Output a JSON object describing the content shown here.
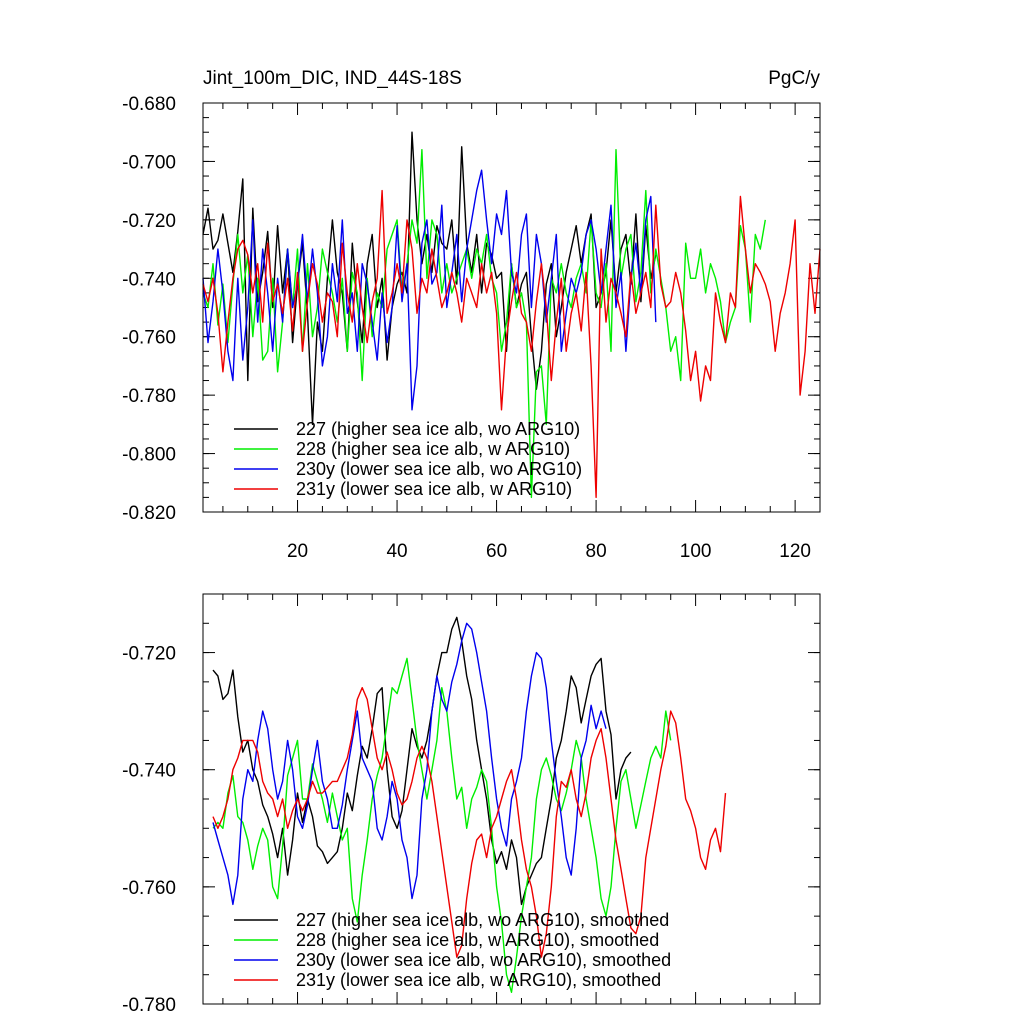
{
  "chart_data": [
    {
      "type": "line",
      "panel": "top",
      "title": "Jint_100m_DIC, IND_44S-18S",
      "units": "PgC/y",
      "xlim": [
        1,
        125
      ],
      "ylim": [
        -0.82,
        -0.68
      ],
      "yticks": [
        -0.68,
        -0.7,
        -0.72,
        -0.74,
        -0.76,
        -0.78,
        -0.8,
        -0.82
      ],
      "ytick_labels": [
        "-0.680",
        "-0.700",
        "-0.720",
        "-0.740",
        "-0.760",
        "-0.780",
        "-0.800",
        "-0.820"
      ],
      "xticks": [
        20,
        40,
        60,
        80,
        100,
        120
      ],
      "xtick_labels": [
        "20",
        "40",
        "60",
        "80",
        "100",
        "120"
      ],
      "legend": [
        "227 (higher sea ice alb, wo ARG10)",
        "228 (higher sea ice alb, w ARG10)",
        "230y (lower sea ice alb, wo ARG10)",
        "231y (lower sea ice alb, w ARG10)"
      ],
      "series": [
        {
          "name": "227 (higher sea ice alb, wo ARG10)",
          "color": "#000000",
          "x_start": 1,
          "values": [
            -0.725,
            -0.716,
            -0.73,
            -0.727,
            -0.718,
            -0.728,
            -0.738,
            -0.724,
            -0.706,
            -0.775,
            -0.716,
            -0.748,
            -0.738,
            -0.724,
            -0.75,
            -0.722,
            -0.745,
            -0.73,
            -0.762,
            -0.742,
            -0.728,
            -0.752,
            -0.79,
            -0.755,
            -0.765,
            -0.74,
            -0.72,
            -0.738,
            -0.745,
            -0.765,
            -0.728,
            -0.748,
            -0.762,
            -0.735,
            -0.725,
            -0.75,
            -0.74,
            -0.768,
            -0.75,
            -0.742,
            -0.738,
            -0.745,
            -0.69,
            -0.72,
            -0.735,
            -0.725,
            -0.738,
            -0.722,
            -0.728,
            -0.73,
            -0.72,
            -0.742,
            -0.695,
            -0.728,
            -0.738,
            -0.725,
            -0.745,
            -0.728,
            -0.732,
            -0.74,
            -0.738,
            -0.765,
            -0.735,
            -0.75,
            -0.742,
            -0.738,
            -0.76,
            -0.778,
            -0.765,
            -0.742,
            -0.735,
            -0.76,
            -0.75,
            -0.738,
            -0.73,
            -0.722,
            -0.735,
            -0.725,
            -0.718,
            -0.75,
            -0.745,
            -0.738,
            -0.72,
            -0.745,
            -0.73,
            -0.725,
            -0.742,
            -0.718,
            -0.748,
            -0.722,
            -0.74,
            -0.732
          ]
        },
        {
          "name": "228 (higher sea ice alb, w ARG10)",
          "color": "#00ee00",
          "x_start": 1,
          "values": [
            -0.745,
            -0.75,
            -0.735,
            -0.756,
            -0.742,
            -0.762,
            -0.742,
            -0.725,
            -0.745,
            -0.732,
            -0.76,
            -0.74,
            -0.768,
            -0.765,
            -0.74,
            -0.772,
            -0.755,
            -0.73,
            -0.75,
            -0.73,
            -0.765,
            -0.735,
            -0.76,
            -0.75,
            -0.73,
            -0.738,
            -0.745,
            -0.755,
            -0.74,
            -0.765,
            -0.738,
            -0.745,
            -0.775,
            -0.74,
            -0.76,
            -0.745,
            -0.75,
            -0.73,
            -0.725,
            -0.72,
            -0.745,
            -0.735,
            -0.72,
            -0.728,
            -0.696,
            -0.74,
            -0.72,
            -0.725,
            -0.745,
            -0.735,
            -0.745,
            -0.74,
            -0.735,
            -0.73,
            -0.74,
            -0.73,
            -0.735,
            -0.725,
            -0.74,
            -0.745,
            -0.765,
            -0.755,
            -0.735,
            -0.75,
            -0.745,
            -0.755,
            -0.815,
            -0.772,
            -0.77,
            -0.79,
            -0.74,
            -0.745,
            -0.735,
            -0.745,
            -0.75,
            -0.74,
            -0.735,
            -0.745,
            -0.72,
            -0.745,
            -0.75,
            -0.735,
            -0.765,
            -0.696,
            -0.74,
            -0.73,
            -0.725,
            -0.748,
            -0.738,
            -0.71,
            -0.745,
            -0.73,
            -0.74,
            -0.75,
            -0.765,
            -0.76,
            -0.775,
            -0.728,
            -0.74,
            -0.74,
            -0.73,
            -0.745,
            -0.735,
            -0.74,
            -0.748,
            -0.762,
            -0.755,
            -0.75,
            -0.722,
            -0.73,
            -0.755,
            -0.725,
            -0.73,
            -0.72
          ]
        },
        {
          "name": "230y (lower sea ice alb, wo ARG10)",
          "color": "#0000ee",
          "x_start": 1,
          "values": [
            -0.74,
            -0.762,
            -0.748,
            -0.73,
            -0.745,
            -0.765,
            -0.775,
            -0.74,
            -0.768,
            -0.75,
            -0.72,
            -0.755,
            -0.73,
            -0.745,
            -0.765,
            -0.74,
            -0.755,
            -0.73,
            -0.75,
            -0.742,
            -0.725,
            -0.748,
            -0.73,
            -0.745,
            -0.77,
            -0.76,
            -0.735,
            -0.748,
            -0.72,
            -0.752,
            -0.745,
            -0.765,
            -0.735,
            -0.742,
            -0.755,
            -0.768,
            -0.745,
            -0.762,
            -0.75,
            -0.722,
            -0.748,
            -0.735,
            -0.785,
            -0.77,
            -0.728,
            -0.72,
            -0.742,
            -0.738,
            -0.715,
            -0.75,
            -0.738,
            -0.725,
            -0.748,
            -0.73,
            -0.72,
            -0.71,
            -0.703,
            -0.72,
            -0.735,
            -0.718,
            -0.725,
            -0.71,
            -0.738,
            -0.745,
            -0.725,
            -0.718,
            -0.75,
            -0.725,
            -0.735,
            -0.755,
            -0.74,
            -0.725,
            -0.765,
            -0.752,
            -0.74,
            -0.745,
            -0.738,
            -0.725,
            -0.72,
            -0.73,
            -0.745,
            -0.73,
            -0.715,
            -0.75,
            -0.738,
            -0.765,
            -0.74,
            -0.728,
            -0.745,
            -0.72,
            -0.712,
            -0.755
          ]
        },
        {
          "name": "231y (lower sea ice alb, w ARG10)",
          "color": "#ee0000",
          "x_start": 1,
          "values": [
            -0.742,
            -0.748,
            -0.74,
            -0.752,
            -0.772,
            -0.755,
            -0.74,
            -0.73,
            -0.727,
            -0.732,
            -0.745,
            -0.735,
            -0.755,
            -0.728,
            -0.748,
            -0.742,
            -0.752,
            -0.74,
            -0.758,
            -0.738,
            -0.765,
            -0.748,
            -0.735,
            -0.742,
            -0.755,
            -0.745,
            -0.748,
            -0.76,
            -0.728,
            -0.745,
            -0.755,
            -0.735,
            -0.75,
            -0.762,
            -0.748,
            -0.74,
            -0.71,
            -0.752,
            -0.745,
            -0.735,
            -0.745,
            -0.72,
            -0.73,
            -0.752,
            -0.74,
            -0.745,
            -0.73,
            -0.74,
            -0.75,
            -0.745,
            -0.738,
            -0.745,
            -0.755,
            -0.74,
            -0.745,
            -0.75,
            -0.735,
            -0.745,
            -0.738,
            -0.752,
            -0.785,
            -0.76,
            -0.748,
            -0.738,
            -0.752,
            -0.755,
            -0.765,
            -0.748,
            -0.735,
            -0.75,
            -0.775,
            -0.755,
            -0.74,
            -0.765,
            -0.752,
            -0.745,
            -0.758,
            -0.738,
            -0.77,
            -0.815,
            -0.73,
            -0.755,
            -0.74,
            -0.745,
            -0.752,
            -0.76,
            -0.738,
            -0.752,
            -0.745,
            -0.738,
            -0.75,
            -0.715,
            -0.742,
            -0.75,
            -0.748,
            -0.738,
            -0.745,
            -0.758,
            -0.775,
            -0.765,
            -0.782,
            -0.77,
            -0.775,
            -0.745,
            -0.755,
            -0.762,
            -0.745,
            -0.75,
            -0.712,
            -0.73,
            -0.745,
            -0.735,
            -0.738,
            -0.742,
            -0.748,
            -0.765,
            -0.752,
            -0.745,
            -0.735,
            -0.72,
            -0.78,
            -0.765,
            -0.735,
            -0.752,
            -0.73
          ]
        }
      ]
    },
    {
      "type": "line",
      "panel": "bottom",
      "xlim": [
        1,
        125
      ],
      "ylim": [
        -0.78,
        -0.71
      ],
      "yticks": [
        -0.72,
        -0.74,
        -0.76,
        -0.78
      ],
      "ytick_labels": [
        "-0.720",
        "-0.740",
        "-0.760",
        "-0.780"
      ],
      "xticks": [
        20,
        40,
        60,
        80,
        100,
        120
      ],
      "legend": [
        "227 (higher sea ice alb, wo ARG10), smoothed",
        "228 (higher sea ice alb, w ARG10), smoothed",
        "230y (lower sea ice alb, wo ARG10), smoothed",
        "231y (lower sea ice alb, w ARG10), smoothed"
      ],
      "series": [
        {
          "name": "227 (higher sea ice alb, wo ARG10), smoothed",
          "color": "#000000",
          "x_start": 3,
          "values": [
            -0.723,
            -0.724,
            -0.728,
            -0.727,
            -0.723,
            -0.731,
            -0.737,
            -0.735,
            -0.74,
            -0.742,
            -0.746,
            -0.748,
            -0.751,
            -0.755,
            -0.75,
            -0.758,
            -0.752,
            -0.744,
            -0.749,
            -0.745,
            -0.748,
            -0.753,
            -0.754,
            -0.756,
            -0.755,
            -0.754,
            -0.75,
            -0.744,
            -0.747,
            -0.741,
            -0.736,
            -0.738,
            -0.733,
            -0.727,
            -0.726,
            -0.74,
            -0.748,
            -0.75,
            -0.747,
            -0.74,
            -0.733,
            -0.736,
            -0.738,
            -0.735,
            -0.73,
            -0.724,
            -0.72,
            -0.72,
            -0.716,
            -0.714,
            -0.718,
            -0.724,
            -0.728,
            -0.735,
            -0.74,
            -0.745,
            -0.752,
            -0.756,
            -0.754,
            -0.757,
            -0.752,
            -0.755,
            -0.763,
            -0.76,
            -0.758,
            -0.756,
            -0.755,
            -0.75,
            -0.745,
            -0.738,
            -0.735,
            -0.73,
            -0.724,
            -0.726,
            -0.732,
            -0.728,
            -0.724,
            -0.722,
            -0.721,
            -0.73,
            -0.734,
            -0.745,
            -0.74,
            -0.738,
            -0.737
          ]
        },
        {
          "name": "228 (higher sea ice alb, w ARG10), smoothed",
          "color": "#00ee00",
          "x_start": 3,
          "values": [
            -0.75,
            -0.749,
            -0.75,
            -0.744,
            -0.741,
            -0.748,
            -0.749,
            -0.752,
            -0.757,
            -0.753,
            -0.75,
            -0.752,
            -0.76,
            -0.762,
            -0.753,
            -0.741,
            -0.738,
            -0.735,
            -0.745,
            -0.745,
            -0.739,
            -0.742,
            -0.745,
            -0.749,
            -0.744,
            -0.748,
            -0.752,
            -0.75,
            -0.762,
            -0.766,
            -0.758,
            -0.752,
            -0.745,
            -0.741,
            -0.738,
            -0.732,
            -0.726,
            -0.727,
            -0.724,
            -0.721,
            -0.728,
            -0.735,
            -0.74,
            -0.745,
            -0.74,
            -0.735,
            -0.726,
            -0.73,
            -0.738,
            -0.745,
            -0.743,
            -0.75,
            -0.745,
            -0.743,
            -0.74,
            -0.742,
            -0.75,
            -0.76,
            -0.766,
            -0.775,
            -0.778,
            -0.772,
            -0.765,
            -0.76,
            -0.755,
            -0.745,
            -0.74,
            -0.738,
            -0.741,
            -0.745,
            -0.747,
            -0.744,
            -0.74,
            -0.735,
            -0.738,
            -0.745,
            -0.75,
            -0.755,
            -0.762,
            -0.765,
            -0.76,
            -0.75,
            -0.742,
            -0.74,
            -0.745,
            -0.75,
            -0.746,
            -0.742,
            -0.738,
            -0.736,
            -0.738,
            -0.73,
            -0.735
          ]
        },
        {
          "name": "230y (lower sea ice alb, wo ARG10), smoothed",
          "color": "#0000ee",
          "x_start": 3,
          "values": [
            -0.749,
            -0.752,
            -0.755,
            -0.758,
            -0.763,
            -0.758,
            -0.745,
            -0.74,
            -0.742,
            -0.735,
            -0.73,
            -0.733,
            -0.74,
            -0.745,
            -0.742,
            -0.735,
            -0.74,
            -0.748,
            -0.75,
            -0.746,
            -0.74,
            -0.735,
            -0.742,
            -0.745,
            -0.75,
            -0.75,
            -0.746,
            -0.74,
            -0.735,
            -0.73,
            -0.738,
            -0.74,
            -0.742,
            -0.75,
            -0.752,
            -0.748,
            -0.742,
            -0.745,
            -0.752,
            -0.755,
            -0.762,
            -0.758,
            -0.745,
            -0.74,
            -0.73,
            -0.724,
            -0.728,
            -0.73,
            -0.725,
            -0.722,
            -0.718,
            -0.715,
            -0.716,
            -0.72,
            -0.725,
            -0.73,
            -0.738,
            -0.745,
            -0.75,
            -0.753,
            -0.745,
            -0.742,
            -0.738,
            -0.73,
            -0.724,
            -0.72,
            -0.721,
            -0.726,
            -0.735,
            -0.742,
            -0.748,
            -0.755,
            -0.758,
            -0.75,
            -0.738,
            -0.735,
            -0.729,
            -0.733,
            -0.73,
            -0.733
          ]
        },
        {
          "name": "231y (lower sea ice alb, w ARG10), smoothed",
          "color": "#ee0000",
          "x_start": 3,
          "values": [
            -0.748,
            -0.75,
            -0.748,
            -0.745,
            -0.74,
            -0.738,
            -0.735,
            -0.735,
            -0.735,
            -0.737,
            -0.742,
            -0.744,
            -0.745,
            -0.748,
            -0.745,
            -0.75,
            -0.747,
            -0.745,
            -0.747,
            -0.745,
            -0.742,
            -0.744,
            -0.744,
            -0.743,
            -0.742,
            -0.742,
            -0.74,
            -0.738,
            -0.734,
            -0.728,
            -0.726,
            -0.728,
            -0.733,
            -0.738,
            -0.74,
            -0.737,
            -0.74,
            -0.744,
            -0.746,
            -0.745,
            -0.742,
            -0.738,
            -0.736,
            -0.738,
            -0.742,
            -0.748,
            -0.754,
            -0.76,
            -0.766,
            -0.772,
            -0.77,
            -0.762,
            -0.756,
            -0.752,
            -0.751,
            -0.755,
            -0.75,
            -0.748,
            -0.745,
            -0.742,
            -0.74,
            -0.745,
            -0.752,
            -0.757,
            -0.76,
            -0.765,
            -0.772,
            -0.768,
            -0.76,
            -0.748,
            -0.742,
            -0.743,
            -0.74,
            -0.745,
            -0.748,
            -0.744,
            -0.738,
            -0.735,
            -0.733,
            -0.738,
            -0.745,
            -0.752,
            -0.757,
            -0.762,
            -0.767,
            -0.768,
            -0.765,
            -0.755,
            -0.75,
            -0.745,
            -0.74,
            -0.736,
            -0.73,
            -0.732,
            -0.738,
            -0.745,
            -0.747,
            -0.75,
            -0.755,
            -0.757,
            -0.752,
            -0.75,
            -0.754,
            -0.744
          ]
        }
      ]
    }
  ]
}
